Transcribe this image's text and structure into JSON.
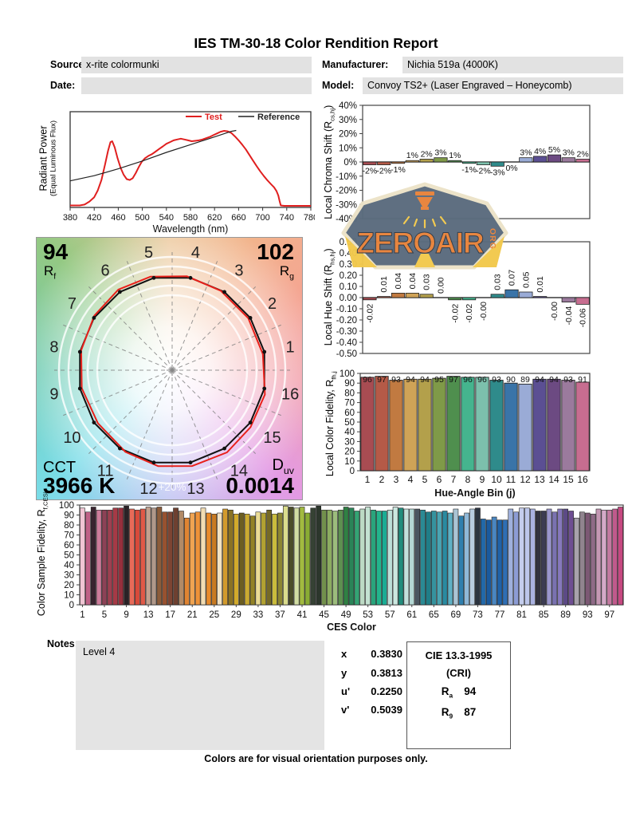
{
  "page": {
    "title": "IES TM-30-18 Color Rendition Report",
    "footer": "Colors are for visual orientation purposes only.",
    "watermark": {
      "brand": "ZEROAIR",
      "suffix": "ORG"
    }
  },
  "header": {
    "source_label": "Source:",
    "source_value": "x-rite colormunki",
    "date_label": "Date:",
    "date_value": "",
    "manufacturer_label": "Manufacturer:",
    "manufacturer_value": "Nichia 519a (4000K)",
    "model_label": "Model:",
    "model_value": "Convoy TS2+ (Laser Engraved – Honeycomb)"
  },
  "summary": {
    "r_symbol": "R",
    "d_symbol": "D",
    "rf": "94",
    "rf_sub": "f",
    "rg": "102",
    "rg_sub": "g",
    "cct_label": "CCT",
    "cct_value": "3966 K",
    "duv_sub": "uv",
    "duv_value": "0.0014"
  },
  "chromaticity": {
    "rows": [
      {
        "label": "x",
        "value": "0.3830"
      },
      {
        "label": "y",
        "value": "0.3813"
      },
      {
        "label": "u'",
        "value": "0.2250"
      },
      {
        "label": "v'",
        "value": "0.5039"
      }
    ]
  },
  "cri_box": {
    "title": "CIE 13.3-1995",
    "subtitle": "(CRI)",
    "ra_symbol": "R",
    "ra_sub": "a",
    "ra_value": "94",
    "r9_symbol": "R",
    "r9_sub": "9",
    "r9_value": "87"
  },
  "notes": {
    "label": "Notes:",
    "value": "Level 4"
  },
  "hue_bin_colors": [
    "#a84c52",
    "#b55a47",
    "#c17a41",
    "#cfa357",
    "#b3a04b",
    "#7f9a48",
    "#4f8f4e",
    "#45b48e",
    "#7cc0ac",
    "#2f8b8b",
    "#3a74a8",
    "#9aabd6",
    "#5b4f93",
    "#6c4a82",
    "#9b7a9d",
    "#c76d90"
  ],
  "ces_colors": [
    "#f0c6d4",
    "#bf6287",
    "#3a2430",
    "#ce7d9c",
    "#8c4256",
    "#9d4050",
    "#a63a46",
    "#962f3c",
    "#2a2226",
    "#e86a58",
    "#d84a3a",
    "#e05a48",
    "#c2a290",
    "#b0988a",
    "#8c5c3a",
    "#985230",
    "#7e4432",
    "#6e4030",
    "#b28a66",
    "#e08432",
    "#f0a452",
    "#ee9238",
    "#f2dcb2",
    "#e88a2a",
    "#c87a22",
    "#f2e2c2",
    "#d29a2c",
    "#8a7224",
    "#d2aa2c",
    "#6c5e22",
    "#caaa32",
    "#928226",
    "#eadc96",
    "#b2a232",
    "#766a26",
    "#cabc3c",
    "#8c8632",
    "#dadc8c",
    "#4c4e2a",
    "#d2dea4",
    "#a2ba40",
    "#8aac34",
    "#364234",
    "#2c362c",
    "#72904c",
    "#8cac60",
    "#9cbc7c",
    "#5e9050",
    "#308044",
    "#2a8458",
    "#34a474",
    "#bcdac4",
    "#c4e2d2",
    "#2aa47c",
    "#22b48c",
    "#1aac94",
    "#bcdfd8",
    "#cce8e0",
    "#228c7c",
    "#c4e0dc",
    "#b4d8d4",
    "#4a5660",
    "#2a8a94",
    "#207e88",
    "#35939e",
    "#4aa4b2",
    "#2a8aa0",
    "#5fb0c4",
    "#aac4d4",
    "#2f7fae",
    "#8fb8d8",
    "#b8cce0",
    "#2b3440",
    "#2268a8",
    "#1a5a9e",
    "#4a86c0",
    "#1f62a8",
    "#2f6eb4",
    "#9fb0dc",
    "#8c9cd4",
    "#c4cdec",
    "#bcc6ea",
    "#aab2e0",
    "#32323e",
    "#3c3c52",
    "#9a96cc",
    "#7a72b0",
    "#8678bc",
    "#5c4a86",
    "#6e4e92",
    "#a8a2ac",
    "#90848e",
    "#7c5874",
    "#8e6a86",
    "#c498b4",
    "#d4aac8",
    "#c27aa0",
    "#c05a8c",
    "#c64880"
  ],
  "chart_data": [
    {
      "id": "spd",
      "type": "line",
      "xlabel": "Wavelength (nm)",
      "ylabel": "Radiant Power",
      "ylabel2": "(Equal Luminous Flux)",
      "xlim": [
        380,
        780
      ],
      "xticks": [
        380,
        420,
        460,
        500,
        540,
        580,
        620,
        660,
        700,
        740,
        780
      ],
      "legend": [
        {
          "name": "Test",
          "color": "#e01f1f"
        },
        {
          "name": "Reference",
          "color": "#222222"
        }
      ],
      "series": [
        {
          "name": "Test",
          "color": "#e01f1f",
          "width": 2,
          "points": [
            [
              380,
              0.005
            ],
            [
              396,
              0.005
            ],
            [
              404,
              0.015
            ],
            [
              412,
              0.05
            ],
            [
              420,
              0.1
            ],
            [
              426,
              0.18
            ],
            [
              432,
              0.3
            ],
            [
              438,
              0.48
            ],
            [
              443,
              0.64
            ],
            [
              447,
              0.74
            ],
            [
              450,
              0.75
            ],
            [
              454,
              0.68
            ],
            [
              459,
              0.55
            ],
            [
              464,
              0.44
            ],
            [
              469,
              0.36
            ],
            [
              474,
              0.31
            ],
            [
              479,
              0.3
            ],
            [
              484,
              0.32
            ],
            [
              489,
              0.38
            ],
            [
              494,
              0.45
            ],
            [
              499,
              0.51
            ],
            [
              504,
              0.55
            ],
            [
              510,
              0.58
            ],
            [
              516,
              0.6
            ],
            [
              522,
              0.63
            ],
            [
              528,
              0.66
            ],
            [
              534,
              0.69
            ],
            [
              540,
              0.72
            ],
            [
              546,
              0.74
            ],
            [
              552,
              0.76
            ],
            [
              558,
              0.77
            ],
            [
              564,
              0.78
            ],
            [
              570,
              0.77
            ],
            [
              576,
              0.76
            ],
            [
              582,
              0.75
            ],
            [
              588,
              0.755
            ],
            [
              594,
              0.76
            ],
            [
              600,
              0.77
            ],
            [
              606,
              0.785
            ],
            [
              612,
              0.8
            ],
            [
              618,
              0.82
            ],
            [
              624,
              0.84
            ],
            [
              630,
              0.86
            ],
            [
              636,
              0.87
            ],
            [
              642,
              0.865
            ],
            [
              648,
              0.845
            ],
            [
              654,
              0.805
            ],
            [
              660,
              0.76
            ],
            [
              666,
              0.71
            ],
            [
              672,
              0.655
            ],
            [
              678,
              0.59
            ],
            [
              684,
              0.525
            ],
            [
              690,
              0.46
            ],
            [
              696,
              0.4
            ],
            [
              702,
              0.345
            ],
            [
              708,
              0.295
            ],
            [
              714,
              0.25
            ],
            [
              719,
              0.215
            ],
            [
              723,
              0.17
            ],
            [
              726,
              0.12
            ],
            [
              728,
              0.06
            ],
            [
              730,
              0.005
            ],
            [
              736,
              0.0
            ],
            [
              780,
              0.0
            ]
          ]
        },
        {
          "name": "Reference",
          "color": "#222222",
          "width": 1.2,
          "points": [
            [
              380,
              0.29
            ],
            [
              420,
              0.35
            ],
            [
              460,
              0.43
            ],
            [
              500,
              0.52
            ],
            [
              540,
              0.62
            ],
            [
              580,
              0.71
            ],
            [
              620,
              0.8
            ],
            [
              648,
              0.865
            ],
            [
              656,
              0.875
            ]
          ]
        }
      ]
    },
    {
      "id": "chroma_shift",
      "type": "bar",
      "ylabel_pre": "Local Chroma Shift (R",
      "ylabel_sub": "cs,hj",
      "ylabel_post": ")",
      "ylim": [
        -40,
        40
      ],
      "ytick_step": 10,
      "ytick_unit": "%",
      "categories": [
        1,
        2,
        3,
        4,
        5,
        6,
        7,
        8,
        9,
        10,
        11,
        12,
        13,
        14,
        15,
        16
      ],
      "values": [
        -2,
        -2,
        -1,
        1,
        2,
        3,
        1,
        -1,
        -2,
        -3,
        0,
        3,
        4,
        5,
        3,
        2
      ],
      "labels": [
        "-2%",
        "-2%",
        "-1%",
        "1%",
        "2%",
        "3%",
        "1%",
        "-1%",
        "-2%",
        "-3%",
        "0%",
        "3%",
        "4%",
        "5%",
        "3%",
        "2%"
      ]
    },
    {
      "id": "hue_shift",
      "type": "bar",
      "ylabel_pre": "Local Hue Shift (R",
      "ylabel_sub": "hs,hj",
      "ylabel_post": ")",
      "ylim": [
        -0.5,
        0.5
      ],
      "ytick_step": 0.1,
      "categories": [
        1,
        2,
        3,
        4,
        5,
        6,
        7,
        8,
        9,
        10,
        11,
        12,
        13,
        14,
        15,
        16
      ],
      "values": [
        -0.02,
        0.01,
        0.04,
        0.04,
        0.03,
        0.0,
        -0.02,
        -0.02,
        0.0,
        0.03,
        0.07,
        0.05,
        0.01,
        0.0,
        -0.04,
        -0.06
      ],
      "labels": [
        "-0.02",
        "0.01",
        "0.04",
        "0.04",
        "0.03",
        "0.00",
        "-0.02",
        "-0.02",
        "-0.00",
        "0.03",
        "0.07",
        "0.05",
        "0.01",
        "-0.00",
        "-0.04",
        "-0.06"
      ]
    },
    {
      "id": "local_fidelity",
      "type": "bar",
      "ylabel_pre": "Local Color Fidelity, R",
      "ylabel_sub": "fh,j",
      "ylabel_post": "",
      "xlabel": "Hue-Angle Bin (j)",
      "ylim": [
        0,
        100
      ],
      "ytick_step": 10,
      "categories": [
        1,
        2,
        3,
        4,
        5,
        6,
        7,
        8,
        9,
        10,
        11,
        12,
        13,
        14,
        15,
        16
      ],
      "values": [
        96,
        97,
        93,
        94,
        94,
        95,
        97,
        96,
        96,
        93,
        90,
        89,
        94,
        94,
        93,
        91
      ]
    },
    {
      "id": "ces",
      "type": "bar",
      "ylabel_pre": "Color Sample Fidelity, R",
      "ylabel_sub": "f,CESi",
      "ylabel_post": "",
      "xlabel": "CES Color",
      "ylim": [
        0,
        100
      ],
      "ytick_step": 10,
      "xticks": [
        1,
        5,
        9,
        13,
        17,
        21,
        25,
        29,
        33,
        37,
        41,
        45,
        49,
        53,
        57,
        61,
        65,
        69,
        73,
        77,
        81,
        85,
        89,
        93,
        97
      ],
      "values": [
        97,
        93,
        98,
        95,
        95,
        95,
        97,
        97,
        99,
        96,
        95,
        96,
        98,
        97,
        98,
        93,
        93,
        97,
        94,
        87,
        92,
        93,
        97,
        92,
        91,
        92,
        96,
        95,
        91,
        92,
        91,
        89,
        93,
        92,
        95,
        91,
        92,
        99,
        98,
        97,
        98,
        92,
        97,
        99,
        95,
        95,
        94,
        95,
        98,
        97,
        94,
        96,
        98,
        95,
        94,
        94,
        95,
        98,
        97,
        96,
        96,
        96,
        95,
        93,
        94,
        93,
        94,
        92,
        96,
        89,
        92,
        96,
        97,
        86,
        85,
        88,
        85,
        85,
        96,
        93,
        97,
        97,
        96,
        94,
        94,
        96,
        93,
        96,
        96,
        94,
        87,
        93,
        92,
        91,
        96,
        95,
        95,
        96,
        98
      ]
    },
    {
      "id": "color_vector",
      "type": "vector-graphic",
      "rf": 94,
      "rg": 102,
      "cct": "3966 K",
      "duv": "0.0014",
      "bins": [
        1,
        2,
        3,
        4,
        5,
        6,
        7,
        8,
        9,
        10,
        11,
        12,
        13,
        14,
        15,
        16
      ],
      "chroma_shift_pct": [
        -2,
        -2,
        -1,
        1,
        2,
        3,
        1,
        -1,
        -2,
        -3,
        0,
        3,
        4,
        5,
        3,
        2
      ],
      "hue_shift": [
        -0.02,
        0.01,
        0.04,
        0.04,
        0.03,
        0.0,
        -0.02,
        -0.02,
        0.0,
        0.03,
        0.07,
        0.05,
        0.01,
        0.0,
        -0.04,
        -0.06
      ],
      "ring_label": "+20%"
    }
  ]
}
